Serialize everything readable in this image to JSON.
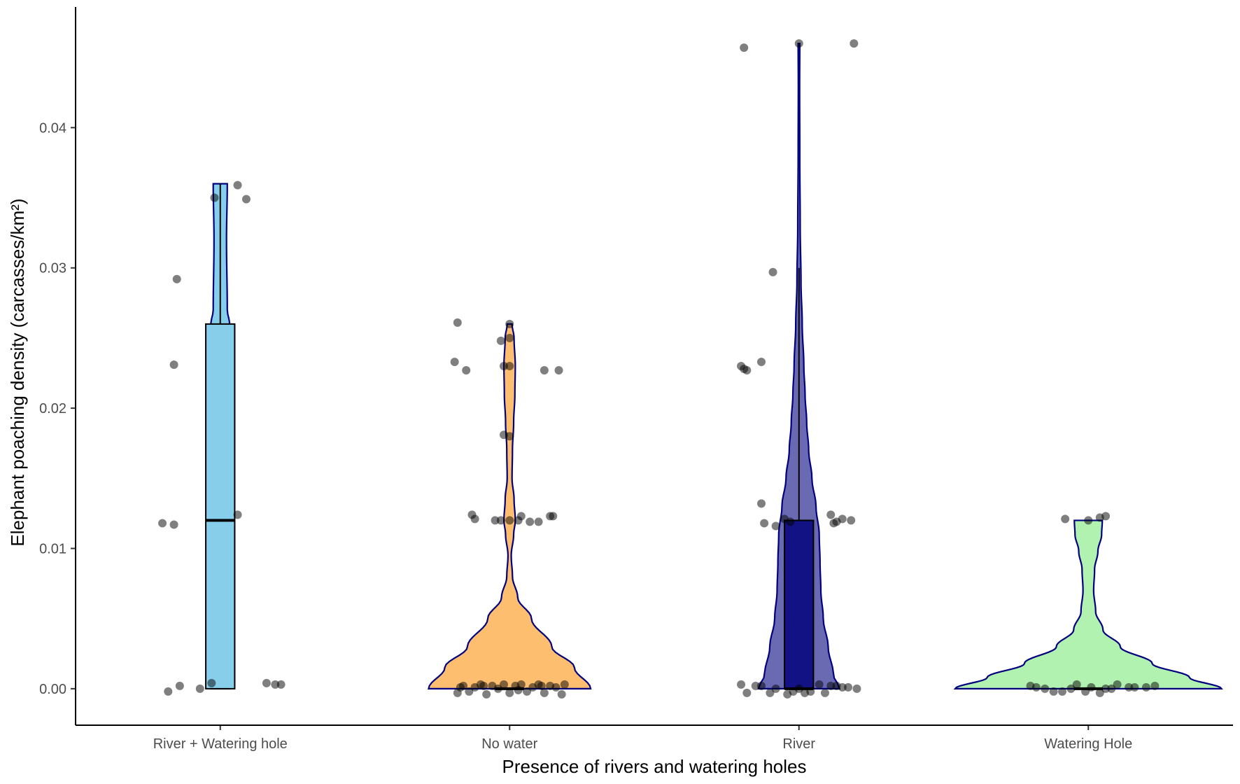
{
  "chart_data": {
    "type": "violin",
    "xlabel": "Presence of rivers and watering holes",
    "ylabel": "Elephant poaching density (carcasses/km²)",
    "ylim": [
      -0.0026,
      0.0486
    ],
    "y_ticks": [
      0.0,
      0.01,
      0.02,
      0.03,
      0.04
    ],
    "y_tick_labels": [
      "0.00",
      "0.01",
      "0.02",
      "0.03",
      "0.04"
    ],
    "grid": false,
    "legend": "none",
    "categories": [
      "River + Watering hole",
      "No water",
      "River",
      "Watering Hole"
    ],
    "groups": [
      {
        "name": "River + Watering hole",
        "fill": "#87ceeb",
        "box_fill": "#87ceeb",
        "box": {
          "q1": 0.0,
          "median": 0.012,
          "q3": 0.026,
          "whisker_low": 0.0,
          "whisker_high": 0.036
        },
        "violin": {
          "min": 0.0,
          "max": 0.036,
          "half_width_max": 0.27,
          "profile": [
            [
              0.0,
              0.12
            ],
            [
              0.026,
              0.12
            ],
            [
              0.027,
              0.09
            ],
            [
              0.032,
              0.08
            ],
            [
              0.036,
              0.09
            ]
          ]
        },
        "points": [
          [
            -0.18,
            -0.0002
          ],
          [
            -0.14,
            0.0002
          ],
          [
            -0.07,
            0.0
          ],
          [
            -0.03,
            0.0004
          ],
          [
            0.16,
            0.0004
          ],
          [
            0.19,
            0.0003
          ],
          [
            0.21,
            0.0003
          ],
          [
            -0.2,
            0.0118
          ],
          [
            -0.16,
            0.0117
          ],
          [
            0.06,
            0.0124
          ],
          [
            -0.16,
            0.0231
          ],
          [
            -0.15,
            0.0292
          ],
          [
            -0.02,
            0.035
          ],
          [
            0.06,
            0.0359
          ],
          [
            0.09,
            0.0349
          ]
        ]
      },
      {
        "name": "No water",
        "fill": "#fdbf6f",
        "box_fill": "#fdbf6f",
        "box": {
          "q1": 0.0,
          "median": 0.0,
          "q3": 0.0,
          "whisker_low": 0.0,
          "whisker_high": 0.0
        },
        "violin": {
          "min": 0.0,
          "max": 0.026,
          "half_width_max": 0.28,
          "profile": [
            [
              0.0,
              1.0
            ],
            [
              0.0015,
              0.8
            ],
            [
              0.003,
              0.52
            ],
            [
              0.005,
              0.27
            ],
            [
              0.0065,
              0.1
            ],
            [
              0.008,
              0.035
            ],
            [
              0.0095,
              0.02
            ],
            [
              0.011,
              0.05
            ],
            [
              0.012,
              0.07
            ],
            [
              0.0135,
              0.055
            ],
            [
              0.015,
              0.03
            ],
            [
              0.017,
              0.035
            ],
            [
              0.019,
              0.05
            ],
            [
              0.021,
              0.065
            ],
            [
              0.023,
              0.07
            ],
            [
              0.025,
              0.055
            ],
            [
              0.026,
              0.03
            ]
          ]
        },
        "points": [
          [
            -0.18,
            -0.0003
          ],
          [
            -0.16,
            0.0002
          ],
          [
            -0.14,
            -0.0002
          ],
          [
            -0.12,
            0.0001
          ],
          [
            -0.1,
            0.0003
          ],
          [
            -0.08,
            -0.0004
          ],
          [
            -0.06,
            0.0002
          ],
          [
            -0.04,
            0.0
          ],
          [
            -0.02,
            0.0003
          ],
          [
            0.0,
            -0.0003
          ],
          [
            0.02,
            0.0002
          ],
          [
            0.04,
            0.0003
          ],
          [
            0.06,
            -0.0002
          ],
          [
            0.08,
            0.0001
          ],
          [
            0.1,
            0.0003
          ],
          [
            0.12,
            -0.0003
          ],
          [
            0.14,
            0.0002
          ],
          [
            0.16,
            0.0001
          ],
          [
            0.18,
            -0.0004
          ],
          [
            0.19,
            0.0003
          ],
          [
            -0.17,
            0.0001
          ],
          [
            -0.09,
            0.0002
          ],
          [
            0.03,
            -0.0001
          ],
          [
            0.11,
            0.0002
          ],
          [
            -0.13,
            0.0124
          ],
          [
            -0.12,
            0.0121
          ],
          [
            -0.05,
            0.012
          ],
          [
            -0.03,
            0.012
          ],
          [
            0.0,
            0.012
          ],
          [
            0.03,
            0.012
          ],
          [
            0.04,
            0.0123
          ],
          [
            0.07,
            0.0119
          ],
          [
            0.1,
            0.0119
          ],
          [
            0.14,
            0.0123
          ],
          [
            0.15,
            0.0123
          ],
          [
            0.0,
            0.018
          ],
          [
            -0.02,
            0.0181
          ],
          [
            -0.02,
            0.023
          ],
          [
            0.0,
            0.023
          ],
          [
            -0.19,
            0.0233
          ],
          [
            -0.15,
            0.0227
          ],
          [
            -0.03,
            0.0248
          ],
          [
            0.0,
            0.025
          ],
          [
            0.0,
            0.026
          ],
          [
            -0.18,
            0.0261
          ],
          [
            0.12,
            0.0227
          ],
          [
            0.17,
            0.0227
          ]
        ]
      },
      {
        "name": "River",
        "fill": "#6a6ab3",
        "box_fill": "#121284",
        "box": {
          "q1": 0.0,
          "median": 0.0,
          "q3": 0.012,
          "whisker_low": 0.0,
          "whisker_high": 0.03
        },
        "violin": {
          "min": 0.0,
          "max": 0.046,
          "half_width_max": 0.14,
          "profile": [
            [
              0.0,
              1.0
            ],
            [
              0.001,
              0.85
            ],
            [
              0.003,
              0.72
            ],
            [
              0.005,
              0.6
            ],
            [
              0.007,
              0.54
            ],
            [
              0.009,
              0.52
            ],
            [
              0.011,
              0.5
            ],
            [
              0.013,
              0.42
            ],
            [
              0.015,
              0.32
            ],
            [
              0.017,
              0.24
            ],
            [
              0.019,
              0.19
            ],
            [
              0.021,
              0.15
            ],
            [
              0.023,
              0.12
            ],
            [
              0.026,
              0.08
            ],
            [
              0.029,
              0.05
            ],
            [
              0.033,
              0.03
            ],
            [
              0.038,
              0.02
            ],
            [
              0.043,
              0.016
            ],
            [
              0.046,
              0.02
            ]
          ]
        },
        "points": [
          [
            -0.2,
            0.0003
          ],
          [
            -0.18,
            -0.0003
          ],
          [
            -0.15,
            0.0002
          ],
          [
            -0.13,
            0.0002
          ],
          [
            -0.1,
            -0.0003
          ],
          [
            -0.08,
            0.0
          ],
          [
            -0.04,
            -0.0004
          ],
          [
            -0.02,
            -0.0002
          ],
          [
            0.0,
            0.0
          ],
          [
            0.02,
            -0.0003
          ],
          [
            0.04,
            -0.0002
          ],
          [
            0.07,
            0.0003
          ],
          [
            0.09,
            -0.0003
          ],
          [
            0.11,
            0.0002
          ],
          [
            0.13,
            0.0002
          ],
          [
            0.15,
            0.0001
          ],
          [
            0.17,
            0.0001
          ],
          [
            0.2,
            0.0
          ],
          [
            -0.13,
            0.0132
          ],
          [
            -0.12,
            0.0118
          ],
          [
            -0.08,
            0.0116
          ],
          [
            -0.05,
            0.0121
          ],
          [
            -0.03,
            0.0119
          ],
          [
            0.11,
            0.0124
          ],
          [
            0.12,
            0.0118
          ],
          [
            0.13,
            0.0119
          ],
          [
            0.15,
            0.0121
          ],
          [
            0.18,
            0.012
          ],
          [
            -0.2,
            0.023
          ],
          [
            -0.19,
            0.0228
          ],
          [
            -0.18,
            0.0227
          ],
          [
            -0.13,
            0.0233
          ],
          [
            -0.09,
            0.0297
          ],
          [
            -0.19,
            0.0457
          ],
          [
            0.0,
            0.046
          ],
          [
            0.19,
            0.046
          ]
        ]
      },
      {
        "name": "Watering Hole",
        "fill": "#b2f2b0",
        "box_fill": "#b2f2b0",
        "box": {
          "q1": 0.0,
          "median": 0.0,
          "q3": 0.0,
          "whisker_low": 0.0,
          "whisker_high": 0.0
        },
        "violin": {
          "min": 0.0,
          "max": 0.012,
          "half_width_max": 0.46,
          "profile": [
            [
              0.0,
              1.0
            ],
            [
              0.0008,
              0.76
            ],
            [
              0.0018,
              0.48
            ],
            [
              0.003,
              0.24
            ],
            [
              0.0042,
              0.11
            ],
            [
              0.0055,
              0.055
            ],
            [
              0.007,
              0.04
            ],
            [
              0.0085,
              0.047
            ],
            [
              0.0098,
              0.072
            ],
            [
              0.011,
              0.1
            ],
            [
              0.012,
              0.105
            ]
          ]
        },
        "points": [
          [
            -0.2,
            0.0002
          ],
          [
            -0.18,
            0.0001
          ],
          [
            -0.15,
            0.0
          ],
          [
            -0.12,
            -0.0002
          ],
          [
            -0.09,
            -0.0002
          ],
          [
            -0.06,
            0.0
          ],
          [
            -0.04,
            0.0003
          ],
          [
            -0.01,
            -0.0002
          ],
          [
            0.01,
            0.0001
          ],
          [
            0.04,
            -0.0003
          ],
          [
            0.06,
            0.0
          ],
          [
            0.08,
            0.0
          ],
          [
            0.1,
            0.0003
          ],
          [
            0.14,
            0.0001
          ],
          [
            0.16,
            0.0001
          ],
          [
            0.2,
            0.0001
          ],
          [
            0.23,
            0.0002
          ],
          [
            -0.08,
            0.0121
          ],
          [
            0.0,
            0.012
          ],
          [
            0.04,
            0.0122
          ],
          [
            0.06,
            0.0123
          ]
        ]
      }
    ]
  }
}
